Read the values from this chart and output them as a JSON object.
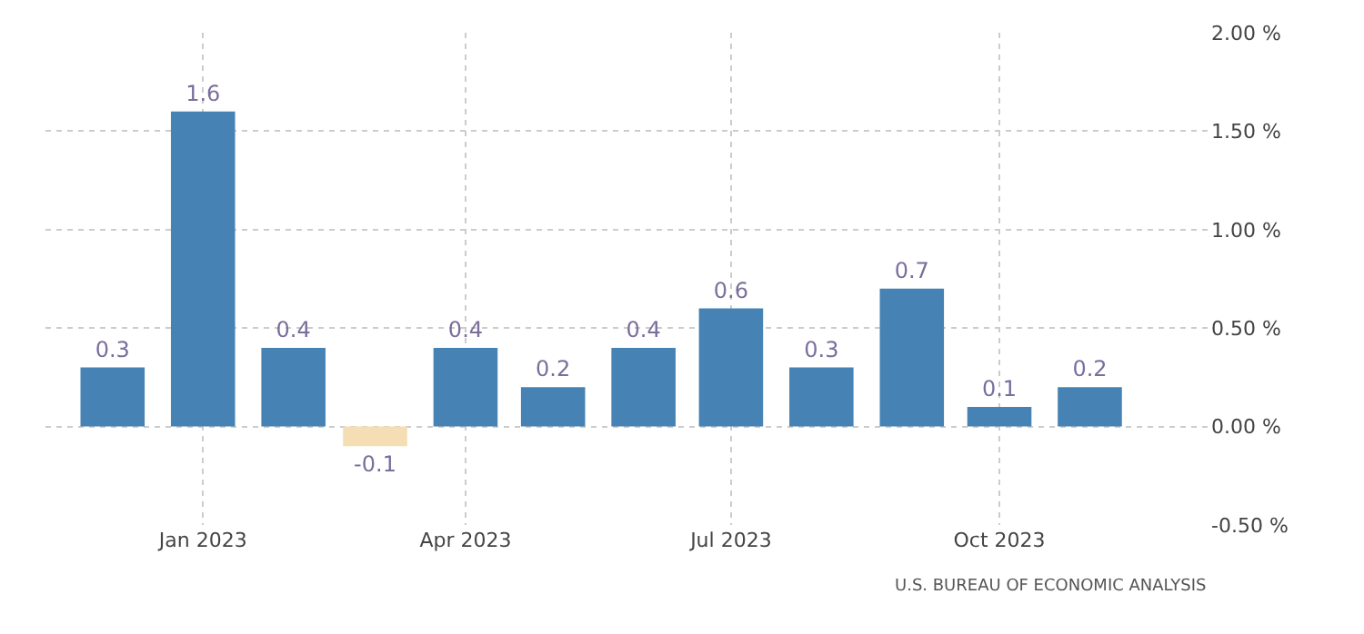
{
  "chart_data": {
    "type": "bar",
    "x": [
      "2022-12",
      "2023-01",
      "2023-02",
      "2023-03",
      "2023-04",
      "2023-05",
      "2023-06",
      "2023-07",
      "2023-08",
      "2023-09",
      "2023-10",
      "2023-11"
    ],
    "values": [
      0.3,
      1.6,
      0.4,
      -0.1,
      0.4,
      0.2,
      0.4,
      0.6,
      0.3,
      0.7,
      0.1,
      0.2
    ],
    "colors": [
      "#4682b4",
      "#4682b4",
      "#4682b4",
      "#f5deb3",
      "#4682b4",
      "#4682b4",
      "#4682b4",
      "#4682b4",
      "#4682b4",
      "#4682b4",
      "#4682b4",
      "#4682b4"
    ],
    "data_labels": true,
    "xlim": [
      "2022-11-08",
      "2023-12-12"
    ],
    "xticks": [
      {
        "value": "2023-01",
        "label": "Jan 2023"
      },
      {
        "value": "2023-04",
        "label": "Apr 2023"
      },
      {
        "value": "2023-07",
        "label": "Jul 2023"
      },
      {
        "value": "2023-10",
        "label": "Oct 2023"
      }
    ],
    "ylim": [
      -0.5,
      2.0
    ],
    "yticks": [
      {
        "value": -0.5,
        "label": "-0.50 %"
      },
      {
        "value": 0,
        "label": "0.00 %"
      },
      {
        "value": 0.5,
        "label": "0.50 %"
      },
      {
        "value": 1,
        "label": "1.00 %"
      },
      {
        "value": 1.5,
        "label": "1.50 %"
      },
      {
        "value": 2,
        "label": "2.00 %"
      }
    ],
    "grid": true,
    "annotations": [
      "U.S. BUREAU OF ECONOMIC ANALYSIS"
    ]
  }
}
